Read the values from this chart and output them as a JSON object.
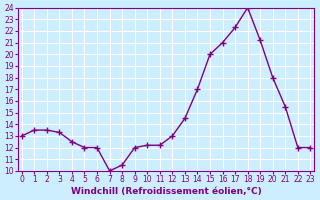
{
  "x": [
    0,
    1,
    2,
    3,
    4,
    5,
    6,
    7,
    8,
    9,
    10,
    11,
    12,
    13,
    14,
    15,
    16,
    17,
    18,
    19,
    20,
    21,
    22,
    23
  ],
  "y": [
    13.0,
    13.5,
    13.5,
    13.3,
    12.5,
    12.0,
    12.0,
    10.0,
    10.5,
    12.0,
    12.2,
    12.2,
    13.0,
    14.5,
    17.0,
    20.0,
    21.0,
    22.3,
    24.0,
    21.2,
    18.0,
    15.5,
    12.0,
    12.0
  ],
  "line_color": "#800080",
  "marker": "+",
  "marker_size": 5,
  "background_color": "#cceeff",
  "grid_color": "#ffffff",
  "xlabel": "Windchill (Refroidissement éolien,°C)",
  "ylim": [
    10,
    24
  ],
  "xlim": [
    0,
    23
  ],
  "yticks": [
    10,
    11,
    12,
    13,
    14,
    15,
    16,
    17,
    18,
    19,
    20,
    21,
    22,
    23,
    24
  ],
  "xticks": [
    0,
    1,
    2,
    3,
    4,
    5,
    6,
    7,
    8,
    9,
    10,
    11,
    12,
    13,
    14,
    15,
    16,
    17,
    18,
    19,
    20,
    21,
    22,
    23
  ],
  "tick_fontsize": 5.5,
  "xlabel_fontsize": 6.5,
  "line_width": 1.0
}
